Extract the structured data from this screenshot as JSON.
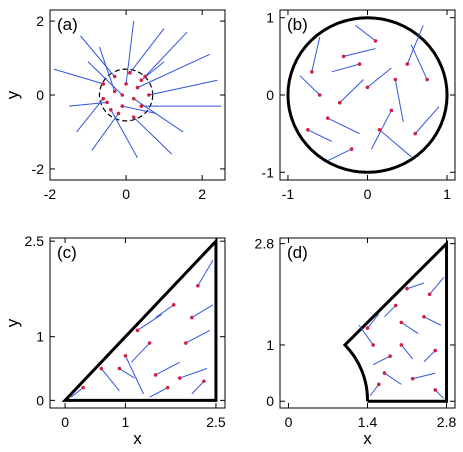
{
  "chart_data": [
    {
      "panel": "(a)",
      "type": "scatter",
      "xlabel": "",
      "ylabel": "y",
      "xlim": [
        -2,
        2.6
      ],
      "ylim": [
        -2.3,
        2.3
      ],
      "xticks": [
        "-2",
        "0",
        "2"
      ],
      "yticks": [
        "2",
        "0",
        "-2"
      ],
      "xtick_values": [
        -2,
        0,
        2
      ],
      "ytick_values": [
        2,
        0,
        -2
      ],
      "boundary": {
        "shape": "circle-dashed",
        "center": [
          0,
          0
        ],
        "radius": 0.7
      },
      "walks": [
        {
          "start": [
            -0.6,
            0.3
          ],
          "end": [
            -1.9,
            0.7
          ]
        },
        {
          "start": [
            -0.5,
            -0.2
          ],
          "end": [
            -1.5,
            -0.3
          ]
        },
        {
          "start": [
            -0.3,
            0.5
          ],
          "end": [
            -1.2,
            1.6
          ]
        },
        {
          "start": [
            -0.2,
            -0.5
          ],
          "end": [
            -0.9,
            -1.5
          ]
        },
        {
          "start": [
            0.1,
            0.6
          ],
          "end": [
            1.0,
            1.8
          ]
        },
        {
          "start": [
            0.3,
            0.2
          ],
          "end": [
            2.2,
            1.1
          ]
        },
        {
          "start": [
            0.4,
            -0.3
          ],
          "end": [
            2.5,
            -0.3
          ]
        },
        {
          "start": [
            0.2,
            -0.6
          ],
          "end": [
            1.2,
            -1.6
          ]
        },
        {
          "start": [
            -0.1,
            0.0
          ],
          "end": [
            -1.0,
            0.9
          ]
        },
        {
          "start": [
            0.5,
            0.5
          ],
          "end": [
            1.6,
            1.7
          ]
        },
        {
          "start": [
            -0.4,
            -0.4
          ],
          "end": [
            0.3,
            -1.7
          ]
        },
        {
          "start": [
            0.0,
            0.3
          ],
          "end": [
            0.2,
            2.0
          ]
        },
        {
          "start": [
            0.6,
            0.0
          ],
          "end": [
            2.4,
            0.4
          ]
        },
        {
          "start": [
            -0.6,
            -0.1
          ],
          "end": [
            -1.3,
            -1.0
          ]
        },
        {
          "start": [
            0.2,
            -0.1
          ],
          "end": [
            1.5,
            -1.0
          ]
        },
        {
          "start": [
            -0.3,
            0.1
          ],
          "end": [
            -0.7,
            1.3
          ]
        },
        {
          "start": [
            0.4,
            0.4
          ],
          "end": [
            1.0,
            0.9
          ]
        },
        {
          "start": [
            -0.1,
            -0.3
          ],
          "end": [
            0.8,
            -0.5
          ]
        }
      ]
    },
    {
      "panel": "(b)",
      "type": "scatter",
      "xlabel": "",
      "ylabel": "",
      "xlim": [
        -1.1,
        1.1
      ],
      "ylim": [
        -1.1,
        1.1
      ],
      "xticks": [
        "-1",
        "0",
        "1"
      ],
      "yticks": [
        "1",
        "0",
        "-1"
      ],
      "xtick_values": [
        -1,
        0,
        1
      ],
      "ytick_values": [
        1,
        0,
        -1
      ],
      "boundary": {
        "shape": "circle",
        "center": [
          0,
          0
        ],
        "radius": 1.0
      },
      "walks": [
        {
          "start": [
            -0.7,
            0.3
          ],
          "end": [
            -0.6,
            0.75
          ]
        },
        {
          "start": [
            -0.5,
            -0.3
          ],
          "end": [
            -0.1,
            -0.5
          ]
        },
        {
          "start": [
            -0.3,
            0.5
          ],
          "end": [
            0.1,
            0.6
          ]
        },
        {
          "start": [
            0.0,
            0.1
          ],
          "end": [
            0.3,
            0.35
          ]
        },
        {
          "start": [
            0.3,
            -0.2
          ],
          "end": [
            0.05,
            -0.7
          ]
        },
        {
          "start": [
            0.5,
            0.4
          ],
          "end": [
            0.7,
            0.9
          ]
        },
        {
          "start": [
            0.6,
            -0.5
          ],
          "end": [
            0.9,
            -0.15
          ]
        },
        {
          "start": [
            -0.2,
            -0.7
          ],
          "end": [
            -0.5,
            -0.85
          ]
        },
        {
          "start": [
            0.1,
            0.7
          ],
          "end": [
            -0.15,
            0.9
          ]
        },
        {
          "start": [
            -0.6,
            0.0
          ],
          "end": [
            -0.85,
            0.25
          ]
        },
        {
          "start": [
            0.35,
            0.2
          ],
          "end": [
            0.45,
            -0.35
          ]
        },
        {
          "start": [
            -0.35,
            -0.1
          ],
          "end": [
            -0.05,
            0.2
          ]
        },
        {
          "start": [
            0.15,
            -0.45
          ],
          "end": [
            0.55,
            -0.8
          ]
        },
        {
          "start": [
            -0.75,
            -0.45
          ],
          "end": [
            -0.45,
            -0.6
          ]
        },
        {
          "start": [
            0.75,
            0.2
          ],
          "end": [
            0.55,
            0.65
          ]
        },
        {
          "start": [
            -0.1,
            0.4
          ],
          "end": [
            -0.45,
            0.3
          ]
        }
      ]
    },
    {
      "panel": "(c)",
      "type": "scatter",
      "xlabel": "x",
      "ylabel": "y",
      "xlim": [
        -0.25,
        2.65
      ],
      "ylim": [
        -0.12,
        2.55
      ],
      "xticks": [
        "0",
        "1",
        "2.5"
      ],
      "yticks": [
        "2.5",
        "1",
        "0"
      ],
      "xtick_values": [
        0,
        1,
        2.5
      ],
      "ytick_values": [
        2.5,
        1,
        0
      ],
      "boundary": {
        "shape": "triangle",
        "vertices": [
          [
            0,
            0
          ],
          [
            2.5,
            0
          ],
          [
            2.5,
            2.5
          ]
        ]
      },
      "walks": [
        {
          "start": [
            0.3,
            0.2
          ],
          "end": [
            0.1,
            0.05
          ]
        },
        {
          "start": [
            0.6,
            0.5
          ],
          "end": [
            0.9,
            0.15
          ]
        },
        {
          "start": [
            1.0,
            0.7
          ],
          "end": [
            1.3,
            0.1
          ]
        },
        {
          "start": [
            1.2,
            1.1
          ],
          "end": [
            1.6,
            1.35
          ]
        },
        {
          "start": [
            1.5,
            0.4
          ],
          "end": [
            1.9,
            0.6
          ]
        },
        {
          "start": [
            1.8,
            1.5
          ],
          "end": [
            1.5,
            1.3
          ]
        },
        {
          "start": [
            2.0,
            0.9
          ],
          "end": [
            2.4,
            1.1
          ]
        },
        {
          "start": [
            2.2,
            1.8
          ],
          "end": [
            2.45,
            2.2
          ]
        },
        {
          "start": [
            1.7,
            0.2
          ],
          "end": [
            1.4,
            0.05
          ]
        },
        {
          "start": [
            2.3,
            0.3
          ],
          "end": [
            2.1,
            0.1
          ]
        },
        {
          "start": [
            0.9,
            0.5
          ],
          "end": [
            1.15,
            0.35
          ]
        },
        {
          "start": [
            1.4,
            0.9
          ],
          "end": [
            1.1,
            0.6
          ]
        },
        {
          "start": [
            2.1,
            1.3
          ],
          "end": [
            2.45,
            1.5
          ]
        },
        {
          "start": [
            1.9,
            0.35
          ],
          "end": [
            2.35,
            0.5
          ]
        }
      ]
    },
    {
      "panel": "(d)",
      "type": "scatter",
      "xlabel": "x",
      "ylabel": "",
      "xlim": [
        -0.15,
        2.95
      ],
      "ylim": [
        -0.12,
        2.9
      ],
      "xticks": [
        "0",
        "1.4",
        "2.8"
      ],
      "yticks": [
        "2.8",
        "1",
        "0"
      ],
      "xtick_values": [
        0,
        1.4,
        2.8
      ],
      "ytick_values": [
        2.8,
        1,
        0
      ],
      "boundary": {
        "shape": "trapezoid-arc",
        "vertices": [
          [
            1.4,
            0
          ],
          [
            2.8,
            0
          ],
          [
            2.8,
            2.8
          ],
          [
            1.0,
            1.0
          ]
        ],
        "arc_center": [
          0,
          0
        ]
      },
      "walks": [
        {
          "start": [
            1.6,
            0.3
          ],
          "end": [
            1.45,
            0.1
          ]
        },
        {
          "start": [
            1.8,
            0.8
          ],
          "end": [
            1.5,
            0.65
          ]
        },
        {
          "start": [
            2.0,
            1.4
          ],
          "end": [
            2.3,
            1.2
          ]
        },
        {
          "start": [
            2.2,
            0.4
          ],
          "end": [
            2.6,
            0.5
          ]
        },
        {
          "start": [
            2.5,
            1.9
          ],
          "end": [
            2.75,
            2.2
          ]
        },
        {
          "start": [
            1.5,
            1.0
          ],
          "end": [
            1.25,
            1.35
          ]
        },
        {
          "start": [
            2.1,
            2.0
          ],
          "end": [
            2.4,
            2.1
          ]
        },
        {
          "start": [
            2.6,
            0.9
          ],
          "end": [
            2.4,
            0.7
          ]
        },
        {
          "start": [
            1.9,
            1.7
          ],
          "end": [
            1.7,
            1.5
          ]
        },
        {
          "start": [
            2.4,
            1.5
          ],
          "end": [
            2.7,
            1.35
          ]
        },
        {
          "start": [
            1.7,
            0.5
          ],
          "end": [
            2.0,
            0.3
          ]
        },
        {
          "start": [
            2.0,
            1.0
          ],
          "end": [
            2.2,
            0.75
          ]
        },
        {
          "start": [
            2.6,
            0.2
          ],
          "end": [
            2.75,
            0.05
          ]
        },
        {
          "start": [
            1.4,
            1.3
          ],
          "end": [
            1.6,
            1.55
          ]
        }
      ]
    }
  ],
  "colors": {
    "walk": "#3355dd",
    "start_point": "#cc2244",
    "boundary": "#000000"
  }
}
